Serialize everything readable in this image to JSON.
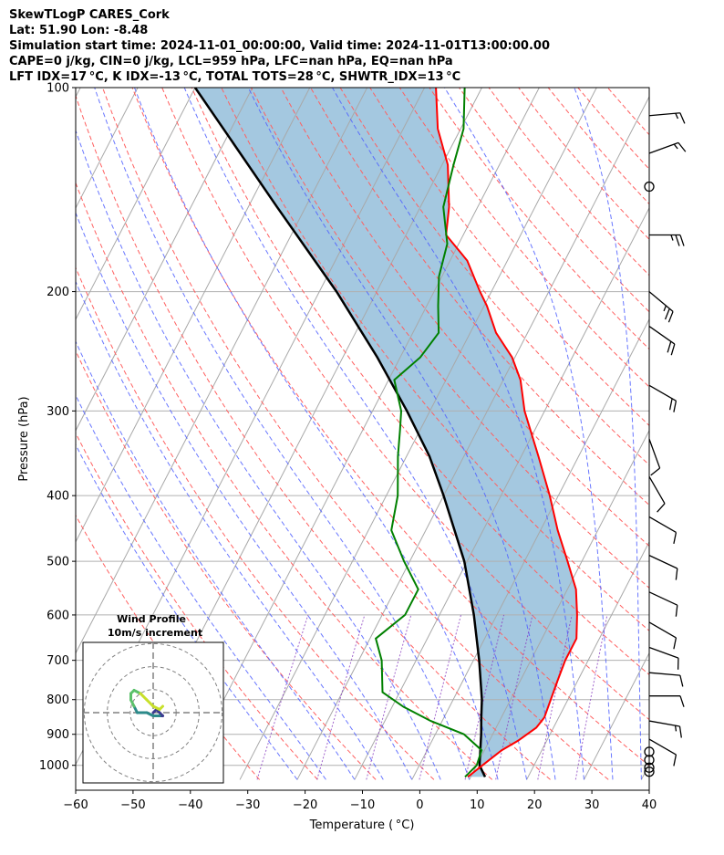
{
  "header": {
    "title": "SkewTLogP CARES_Cork",
    "latlon": "Lat: 51.90   Lon: -8.48",
    "times": "Simulation start time: 2024-11-01_00:00:00, Valid time: 2024-11-01T13:00:00.00",
    "indices1": "CAPE=0 j/kg, CIN=0 j/kg, LCL=959 hPa, LFC=nan hPa, EQ=nan hPa",
    "indices2": "LFT IDX=17 °C, K IDX=-13 °C, TOTAL TOTS=28 °C, SHWTR_IDX=13 °C"
  },
  "chart_data": {
    "type": "skew-t log-p",
    "xlabel": "Temperature ( °C)",
    "ylabel": "Pressure (hPa)",
    "xlim": [
      -60,
      40
    ],
    "ylim": [
      1050,
      100
    ],
    "x_ticks": [
      "−60",
      "−50",
      "−40",
      "−30",
      "−20",
      "−10",
      "0",
      "10",
      "20",
      "30",
      "40"
    ],
    "x_tick_values": [
      -60,
      -50,
      -40,
      -30,
      -20,
      -10,
      0,
      10,
      20,
      30,
      40
    ],
    "y_ticks": [
      "100",
      "200",
      "300",
      "400",
      "500",
      "600",
      "700",
      "800",
      "900",
      "1000"
    ],
    "y_tick_values": [
      100,
      200,
      300,
      400,
      500,
      600,
      700,
      800,
      900,
      1000
    ],
    "grid": true,
    "temperature": {
      "color": "#ff0000",
      "points": [
        [
          1040,
          9.5
        ],
        [
          1000,
          11
        ],
        [
          950,
          13
        ],
        [
          920,
          15
        ],
        [
          880,
          17
        ],
        [
          850,
          17.5
        ],
        [
          800,
          17
        ],
        [
          750,
          16.5
        ],
        [
          700,
          16
        ],
        [
          650,
          16
        ],
        [
          600,
          14
        ],
        [
          550,
          11.5
        ],
        [
          500,
          7.5
        ],
        [
          450,
          3
        ],
        [
          400,
          -1.5
        ],
        [
          350,
          -7
        ],
        [
          300,
          -13.5
        ],
        [
          270,
          -17
        ],
        [
          250,
          -20.5
        ],
        [
          230,
          -25.5
        ],
        [
          210,
          -29.5
        ],
        [
          200,
          -32
        ],
        [
          180,
          -37
        ],
        [
          165,
          -43
        ],
        [
          150,
          -45
        ],
        [
          130,
          -49
        ],
        [
          115,
          -54
        ],
        [
          100,
          -58
        ]
      ]
    },
    "dewpoint": {
      "color": "#008000",
      "points": [
        [
          1040,
          9
        ],
        [
          1000,
          10
        ],
        [
          950,
          9.5
        ],
        [
          900,
          5
        ],
        [
          860,
          -2
        ],
        [
          820,
          -8
        ],
        [
          780,
          -13
        ],
        [
          700,
          -16
        ],
        [
          650,
          -19
        ],
        [
          600,
          -16
        ],
        [
          550,
          -16
        ],
        [
          500,
          -21
        ],
        [
          450,
          -26
        ],
        [
          400,
          -28
        ],
        [
          350,
          -31.5
        ],
        [
          320,
          -33.5
        ],
        [
          300,
          -35
        ],
        [
          270,
          -39
        ],
        [
          250,
          -36.5
        ],
        [
          230,
          -35.5
        ],
        [
          210,
          -38
        ],
        [
          190,
          -40.5
        ],
        [
          170,
          -42
        ],
        [
          150,
          -46
        ],
        [
          130,
          -48
        ],
        [
          115,
          -49.5
        ],
        [
          100,
          -53
        ]
      ]
    },
    "parcel": {
      "color": "#000000",
      "points": [
        [
          1040,
          12.5
        ],
        [
          1000,
          10.5
        ],
        [
          959,
          9.5
        ],
        [
          900,
          8
        ],
        [
          850,
          6.5
        ],
        [
          800,
          5
        ],
        [
          700,
          1
        ],
        [
          600,
          -4
        ],
        [
          500,
          -10.5
        ],
        [
          400,
          -20
        ],
        [
          350,
          -26
        ],
        [
          300,
          -34
        ],
        [
          250,
          -44
        ],
        [
          200,
          -57
        ],
        [
          150,
          -75
        ],
        [
          100,
          -100
        ]
      ]
    },
    "wind_barbs": [
      {
        "p": 1022,
        "speed": 0
      },
      {
        "p": 1008,
        "speed": 0
      },
      {
        "p": 982,
        "speed": 0
      },
      {
        "p": 955,
        "speed": 0
      },
      {
        "p": 915,
        "speed": 10,
        "dir": 300
      },
      {
        "p": 860,
        "speed": 15,
        "dir": 280
      },
      {
        "p": 790,
        "speed": 10,
        "dir": 270
      },
      {
        "p": 730,
        "speed": 10,
        "dir": 275
      },
      {
        "p": 670,
        "speed": 10,
        "dir": 290
      },
      {
        "p": 615,
        "speed": 10,
        "dir": 300
      },
      {
        "p": 555,
        "speed": 10,
        "dir": 295
      },
      {
        "p": 490,
        "speed": 10,
        "dir": 295
      },
      {
        "p": 430,
        "speed": 10,
        "dir": 300
      },
      {
        "p": 375,
        "speed": 10,
        "dir": 330
      },
      {
        "p": 330,
        "speed": 10,
        "dir": 340
      },
      {
        "p": 275,
        "speed": 20,
        "dir": 300
      },
      {
        "p": 225,
        "speed": 20,
        "dir": 305
      },
      {
        "p": 200,
        "speed": 25,
        "dir": 310
      },
      {
        "p": 165,
        "speed": 25,
        "dir": 270
      },
      {
        "p": 140,
        "speed": 0
      },
      {
        "p": 125,
        "speed": 15,
        "dir": 250
      },
      {
        "p": 110,
        "speed": 15,
        "dir": 265
      }
    ],
    "inset": {
      "title": "Wind Profile",
      "subtitle": "10m/s increment",
      "rings": [
        10,
        20,
        30
      ],
      "hodograph": [
        [
          0,
          0
        ],
        [
          1,
          1
        ],
        [
          2,
          0
        ],
        [
          3,
          -1
        ],
        [
          2,
          -1
        ],
        [
          0,
          -1
        ],
        [
          -2,
          0
        ],
        [
          -5,
          0
        ],
        [
          -6,
          2
        ],
        [
          -7,
          4
        ],
        [
          -7,
          6
        ],
        [
          -6,
          7
        ],
        [
          -4,
          6
        ],
        [
          -2,
          4
        ],
        [
          0,
          2
        ],
        [
          2,
          1
        ],
        [
          3,
          2
        ]
      ]
    }
  }
}
